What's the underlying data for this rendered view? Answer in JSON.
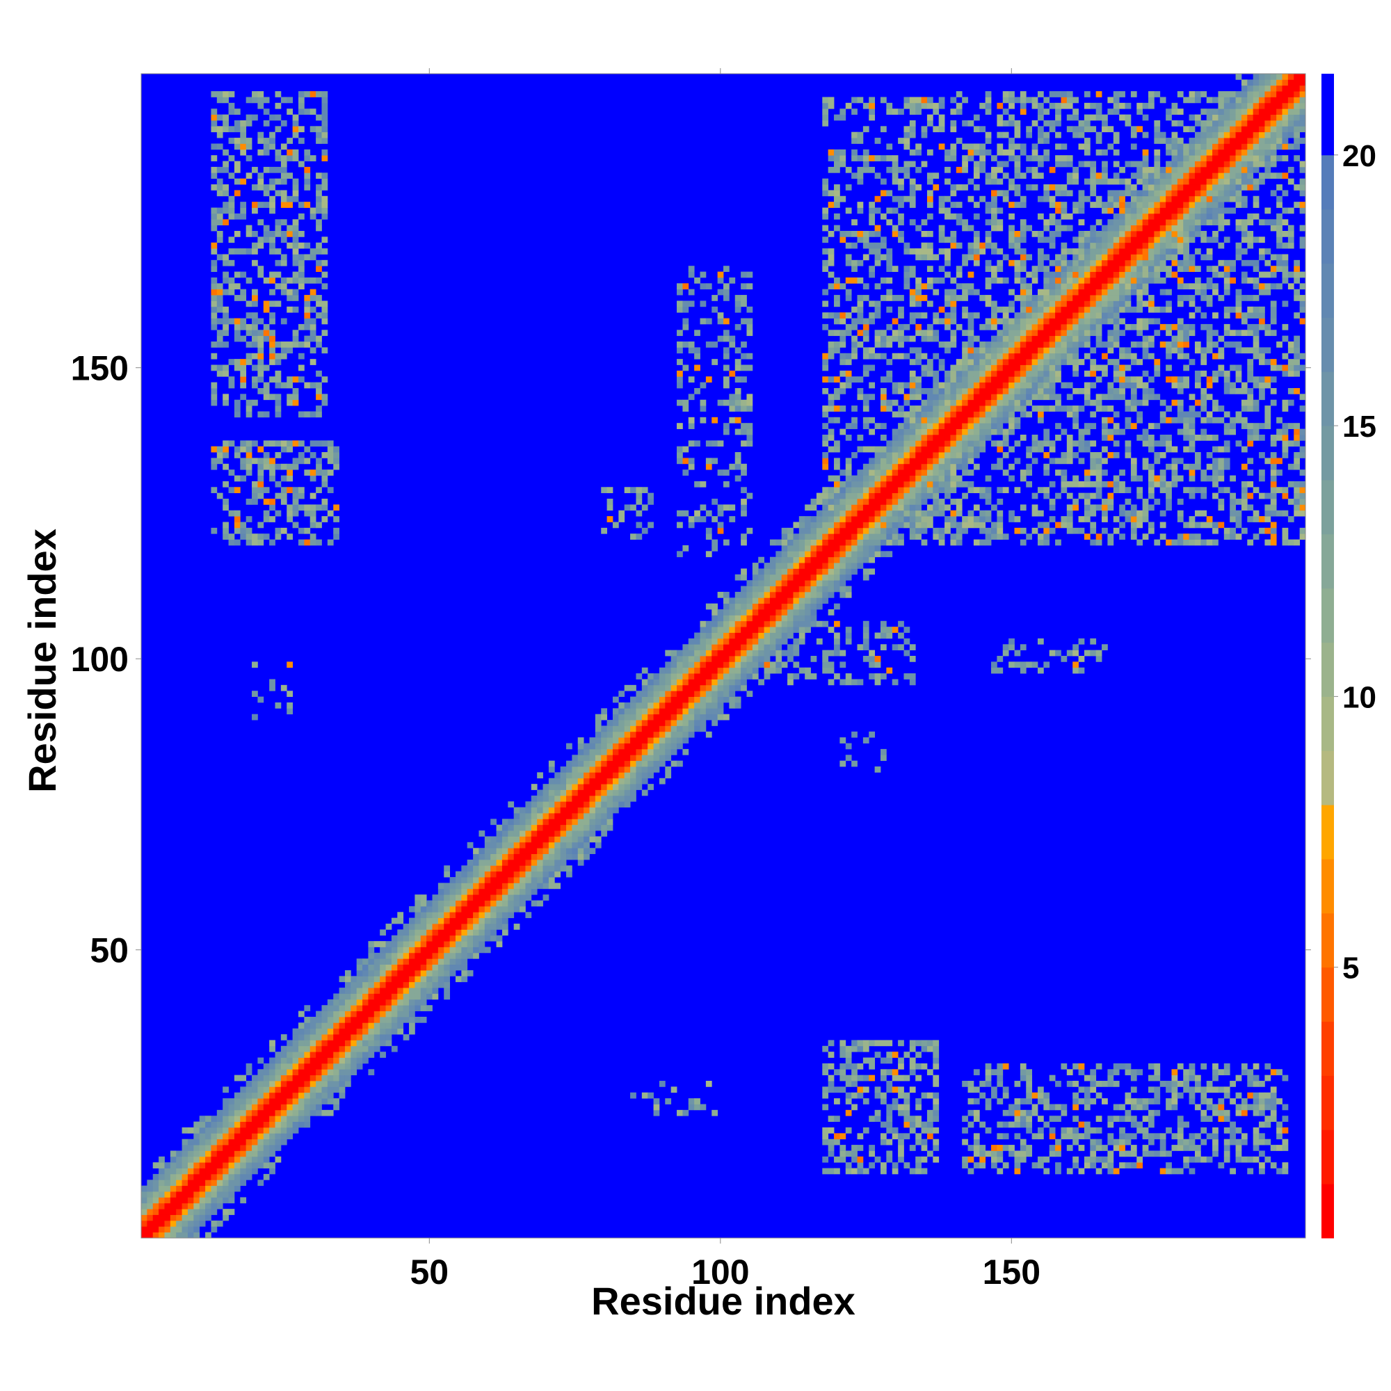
{
  "chart_data": {
    "type": "heatmap",
    "title": "",
    "xlabel": "Residue index",
    "ylabel": "Residue index",
    "n_residues": 200,
    "xlim": [
      1,
      200
    ],
    "ylim": [
      1,
      200
    ],
    "x_ticks": [
      50,
      100,
      150
    ],
    "y_ticks": [
      50,
      100,
      150
    ],
    "colorbar": {
      "range": [
        0,
        21.5
      ],
      "ticks": [
        5,
        10,
        15,
        20
      ],
      "colors": [
        {
          "from": 0,
          "to": 1,
          "color": "#ff0000"
        },
        {
          "from": 1,
          "to": 2,
          "color": "#ff1a00"
        },
        {
          "from": 2,
          "to": 3,
          "color": "#ff2e00"
        },
        {
          "from": 3,
          "to": 4,
          "color": "#ff4000"
        },
        {
          "from": 4,
          "to": 5,
          "color": "#ff5a00"
        },
        {
          "from": 5,
          "to": 6,
          "color": "#ff7400"
        },
        {
          "from": 6,
          "to": 7,
          "color": "#ff8c00"
        },
        {
          "from": 7,
          "to": 8,
          "color": "#ffa600"
        },
        {
          "from": 8,
          "to": 9,
          "color": "#b5b980"
        },
        {
          "from": 9,
          "to": 10,
          "color": "#a8b886"
        },
        {
          "from": 10,
          "to": 11,
          "color": "#9bb38c"
        },
        {
          "from": 11,
          "to": 12,
          "color": "#8fae92"
        },
        {
          "from": 12,
          "to": 13,
          "color": "#86a898"
        },
        {
          "from": 13,
          "to": 14,
          "color": "#7ca19c"
        },
        {
          "from": 14,
          "to": 15,
          "color": "#749aa2"
        },
        {
          "from": 15,
          "to": 16,
          "color": "#6e94a8"
        },
        {
          "from": 16,
          "to": 17,
          "color": "#678dae"
        },
        {
          "from": 17,
          "to": 18,
          "color": "#6188b2"
        },
        {
          "from": 18,
          "to": 19,
          "color": "#5b82b6"
        },
        {
          "from": 19,
          "to": 20,
          "color": "#557cba"
        },
        {
          "from": 20,
          "to": 21.5,
          "color": "#0000ff"
        }
      ]
    },
    "background_distance": 21,
    "diagonal_band": {
      "core_width": 2,
      "orange_width": 3,
      "halo_width": 8
    },
    "contact_regions": [
      {
        "x": [
          13,
          32
        ],
        "y": [
          142,
          197
        ],
        "density": 0.45
      },
      {
        "x": [
          13,
          34
        ],
        "y": [
          120,
          137
        ],
        "density": 0.45
      },
      {
        "x": [
          118,
          137
        ],
        "y": [
          12,
          34
        ],
        "density": 0.45
      },
      {
        "x": [
          142,
          197
        ],
        "y": [
          12,
          30
        ],
        "density": 0.45
      },
      {
        "x": [
          118,
          140
        ],
        "y": [
          120,
          196
        ],
        "density": 0.4
      },
      {
        "x": [
          140,
          200
        ],
        "y": [
          120,
          197
        ],
        "density": 0.45
      },
      {
        "x": [
          93,
          105
        ],
        "y": [
          118,
          167
        ],
        "density": 0.3
      },
      {
        "x": [
          80,
          88
        ],
        "y": [
          121,
          129
        ],
        "density": 0.3
      },
      {
        "x": [
          107,
          133
        ],
        "y": [
          96,
          106
        ],
        "density": 0.3
      },
      {
        "x": [
          121,
          130
        ],
        "y": [
          81,
          87
        ],
        "density": 0.3
      },
      {
        "x": [
          147,
          166
        ],
        "y": [
          98,
          103
        ],
        "density": 0.25
      },
      {
        "x": [
          85,
          99
        ],
        "y": [
          22,
          27
        ],
        "density": 0.2
      },
      {
        "x": [
          20,
          26
        ],
        "y": [
          89,
          99
        ],
        "density": 0.15
      }
    ]
  }
}
